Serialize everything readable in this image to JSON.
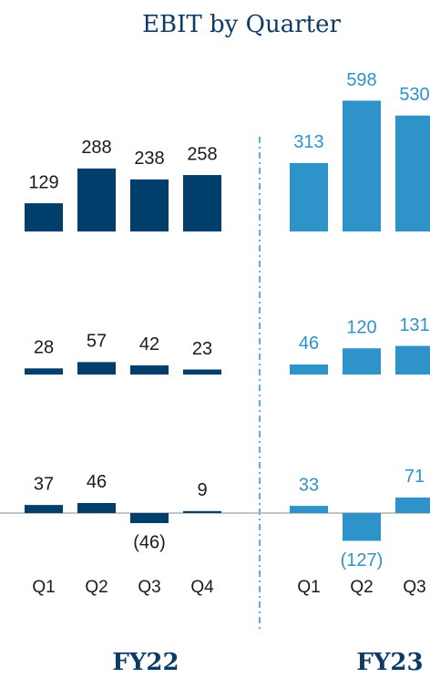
{
  "chart_data": {
    "type": "bar",
    "title": "EBIT by Quarter",
    "groups": [
      {
        "label": "FY22",
        "color": "#003f6b",
        "label_color": "#1a1a1a",
        "categories": [
          "Q1",
          "Q2",
          "Q3",
          "Q4"
        ],
        "rows": [
          {
            "values": [
              129,
              288,
              238,
              258
            ]
          },
          {
            "values": [
              28,
              57,
              42,
              23
            ]
          },
          {
            "values": [
              37,
              46,
              -46,
              9
            ],
            "value_labels": [
              "37",
              "46",
              "(46)",
              "9"
            ]
          }
        ]
      },
      {
        "label": "FY23",
        "color": "#2e93c8",
        "label_color": "#2e93c8",
        "categories": [
          "Q1",
          "Q2",
          "Q3"
        ],
        "rows": [
          {
            "values": [
              313,
              598,
              530
            ]
          },
          {
            "values": [
              46,
              120,
              131
            ]
          },
          {
            "values": [
              33,
              -127,
              71
            ],
            "value_labels": [
              "33",
              "(127)",
              "71"
            ]
          }
        ]
      }
    ]
  }
}
